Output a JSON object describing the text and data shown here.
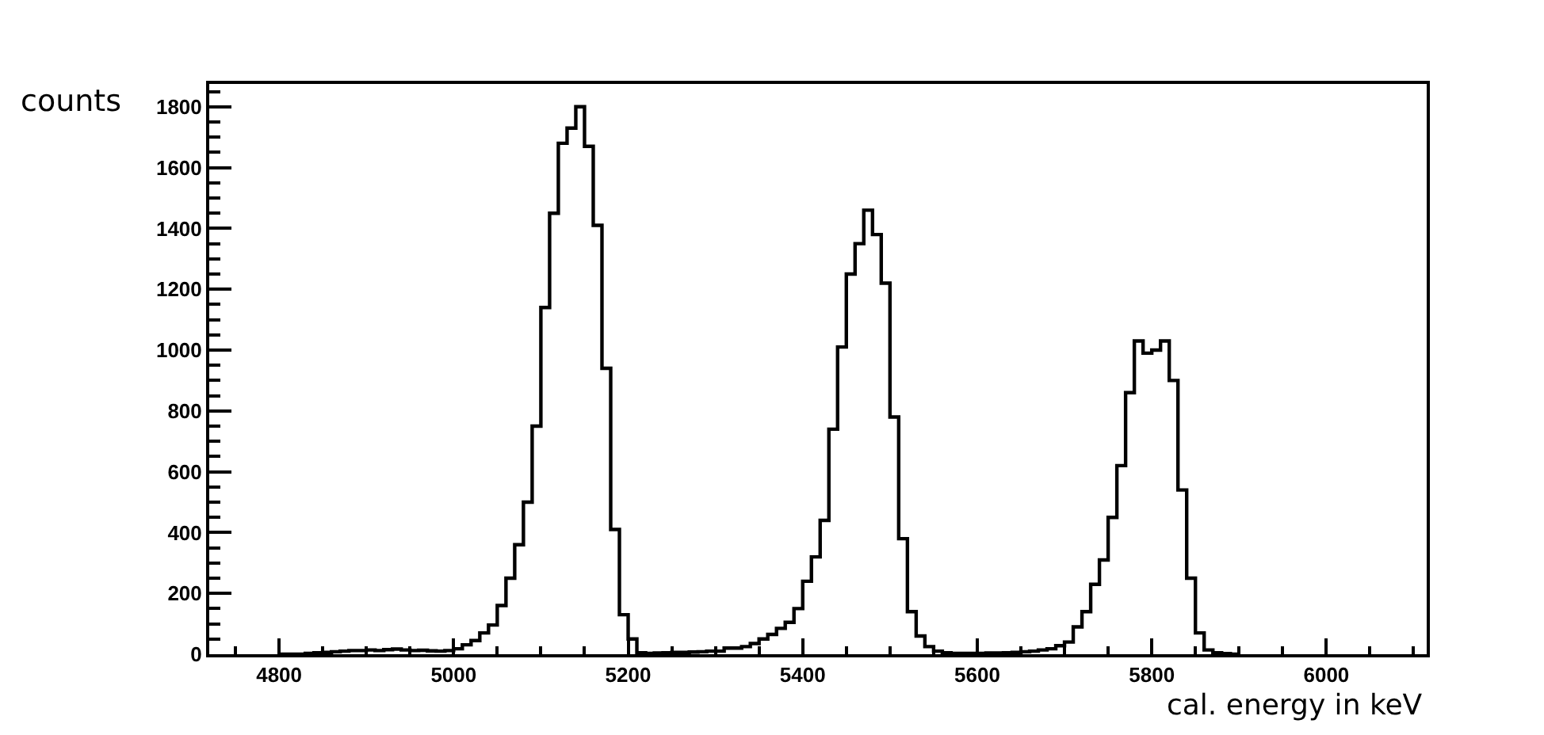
{
  "chart_data": {
    "type": "histogram",
    "xlabel": "cal. energy in keV",
    "ylabel": "counts",
    "color": "#000000",
    "bins": [
      4800,
      4810,
      4820,
      4830,
      4840,
      4850,
      4860,
      4870,
      4880,
      4890,
      4900,
      4910,
      4920,
      4930,
      4940,
      4950,
      4960,
      4970,
      4980,
      4990,
      5000,
      5010,
      5020,
      5030,
      5040,
      5050,
      5060,
      5070,
      5080,
      5090,
      5100,
      5110,
      5120,
      5130,
      5140,
      5150,
      5160,
      5170,
      5180,
      5190,
      5200,
      5210,
      5220,
      5230,
      5240,
      5250,
      5260,
      5270,
      5280,
      5290,
      5300,
      5310,
      5320,
      5330,
      5340,
      5350,
      5360,
      5370,
      5380,
      5390,
      5400,
      5410,
      5420,
      5430,
      5440,
      5450,
      5460,
      5470,
      5480,
      5490,
      5500,
      5510,
      5520,
      5530,
      5540,
      5550,
      5560,
      5570,
      5580,
      5590,
      5600,
      5610,
      5620,
      5630,
      5640,
      5650,
      5660,
      5670,
      5680,
      5690,
      5700,
      5710,
      5720,
      5730,
      5740,
      5750,
      5760,
      5770,
      5780,
      5790,
      5800,
      5810,
      5820,
      5830,
      5840,
      5850,
      5860,
      5870,
      5880,
      5890,
      5900
    ],
    "values": [
      0,
      0,
      0,
      3,
      5,
      6,
      8,
      10,
      12,
      12,
      14,
      12,
      15,
      17,
      14,
      12,
      13,
      11,
      10,
      12,
      18,
      31,
      45,
      70,
      96,
      160,
      250,
      360,
      500,
      750,
      1140,
      1450,
      1680,
      1730,
      1800,
      1670,
      1410,
      940,
      410,
      130,
      50,
      5,
      3,
      4,
      5,
      6,
      6,
      7,
      8,
      10,
      10,
      20,
      20,
      25,
      35,
      50,
      65,
      85,
      105,
      150,
      240,
      320,
      440,
      740,
      1010,
      1250,
      1350,
      1460,
      1380,
      1220,
      780,
      380,
      140,
      60,
      25,
      10,
      5,
      3,
      3,
      3,
      3,
      4,
      4,
      5,
      6,
      8,
      10,
      14,
      18,
      28,
      40,
      90,
      140,
      230,
      310,
      450,
      620,
      860,
      1030,
      990,
      1000,
      1030,
      900,
      540,
      250,
      70,
      14,
      5,
      2,
      0
    ],
    "xlim": [
      4720,
      6115
    ],
    "xticks": [
      4800,
      5000,
      5200,
      5400,
      5600,
      5800,
      6000
    ],
    "ylim": [
      0,
      1875
    ],
    "yticks": [
      0,
      200,
      400,
      600,
      800,
      1000,
      1200,
      1400,
      1600,
      1800
    ],
    "grid": false
  }
}
